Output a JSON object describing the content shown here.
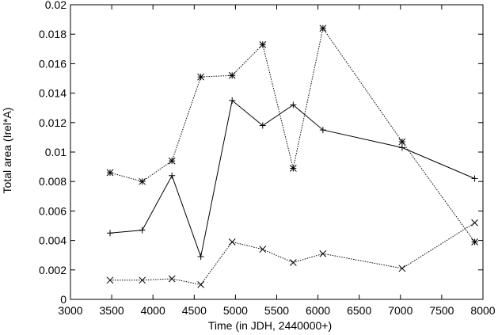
{
  "chart_data": {
    "type": "line",
    "title": "",
    "xlabel": "Time (in JDH, 2440000+)",
    "ylabel": "Total area (Irel*A)",
    "xlim": [
      3000,
      8000
    ],
    "ylim": [
      0,
      0.02
    ],
    "xticks": [
      3000,
      3500,
      4000,
      4500,
      5000,
      5500,
      6000,
      6500,
      7000,
      7500,
      8000
    ],
    "yticks": [
      "0",
      "0.002",
      "0.004",
      "0.006",
      "0.008",
      "0.01",
      "0.012",
      "0.014",
      "0.016",
      "0.018",
      "0.02"
    ],
    "grid": false,
    "legend": "none",
    "series": [
      {
        "marker": "star",
        "line": "dotted",
        "x": [
          3480,
          3870,
          4230,
          4580,
          4960,
          5330,
          5700,
          6060,
          7020,
          7900
        ],
        "y": [
          0.0086,
          0.008,
          0.0094,
          0.0151,
          0.0152,
          0.0173,
          0.0089,
          0.0184,
          0.0107,
          0.0039
        ]
      },
      {
        "marker": "plus",
        "line": "solid",
        "x": [
          3480,
          3870,
          4230,
          4580,
          4960,
          5330,
          5700,
          6060,
          7020,
          7900
        ],
        "y": [
          0.0045,
          0.0047,
          0.0084,
          0.0029,
          0.0135,
          0.0118,
          0.0132,
          0.0115,
          0.0103,
          0.0082
        ]
      },
      {
        "marker": "cross",
        "line": "dotted",
        "x": [
          3480,
          3870,
          4230,
          4580,
          4960,
          5330,
          5700,
          6060,
          7020,
          7900
        ],
        "y": [
          0.0013,
          0.0013,
          0.0014,
          0.001,
          0.0039,
          0.0034,
          0.0025,
          0.0031,
          0.0021,
          0.0052
        ]
      }
    ]
  }
}
